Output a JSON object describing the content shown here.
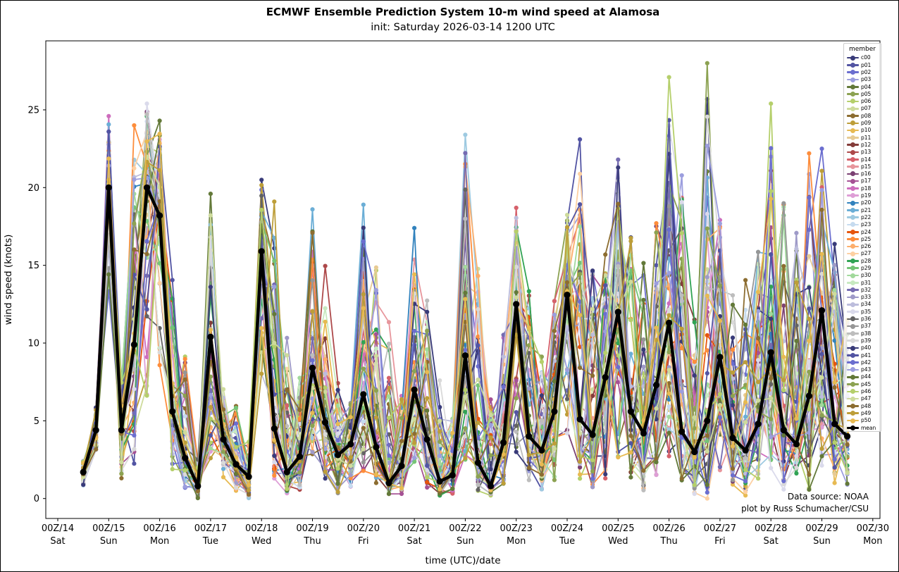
{
  "chart_data": {
    "type": "line",
    "title": "ECMWF Ensemble Prediction System 10-m wind speed at Alamosa",
    "subtitle": "init: Saturday 2026-03-14 1200 UTC",
    "xlabel": "time (UTC)/date",
    "ylabel": "wind speed (knots)",
    "yticks": [
      0,
      5,
      10,
      15,
      20,
      25
    ],
    "ylim": [
      -1.3,
      29.4
    ],
    "grid": false,
    "legend": {
      "title": "member",
      "position": "upper right"
    },
    "x_ticks": [
      {
        "label": "00Z/14",
        "day": "Sat"
      },
      {
        "label": "00Z/15",
        "day": "Sun"
      },
      {
        "label": "00Z/16",
        "day": "Mon"
      },
      {
        "label": "00Z/17",
        "day": "Tue"
      },
      {
        "label": "00Z/18",
        "day": "Wed"
      },
      {
        "label": "00Z/19",
        "day": "Thu"
      },
      {
        "label": "00Z/20",
        "day": "Fri"
      },
      {
        "label": "00Z/21",
        "day": "Sat"
      },
      {
        "label": "00Z/22",
        "day": "Sun"
      },
      {
        "label": "00Z/23",
        "day": "Mon"
      },
      {
        "label": "00Z/24",
        "day": "Tue"
      },
      {
        "label": "00Z/25",
        "day": "Wed"
      },
      {
        "label": "00Z/26",
        "day": "Thu"
      },
      {
        "label": "00Z/27",
        "day": "Fri"
      },
      {
        "label": "00Z/28",
        "day": "Sat"
      },
      {
        "label": "00Z/29",
        "day": "Sun"
      },
      {
        "label": "00Z/30",
        "day": "Mon"
      }
    ],
    "x_step_hours": 6,
    "times": [
      "12Z/14",
      "18Z/14",
      "00Z/15",
      "06Z/15",
      "12Z/15",
      "18Z/15",
      "00Z/16",
      "06Z/16",
      "12Z/16",
      "18Z/16",
      "00Z/17",
      "06Z/17",
      "12Z/17",
      "18Z/17",
      "00Z/18",
      "06Z/18",
      "12Z/18",
      "18Z/18",
      "00Z/19",
      "06Z/19",
      "12Z/19",
      "18Z/19",
      "00Z/20",
      "06Z/20",
      "12Z/20",
      "18Z/20",
      "00Z/21",
      "06Z/21",
      "12Z/21",
      "18Z/21",
      "00Z/22",
      "06Z/22",
      "12Z/22",
      "18Z/22",
      "00Z/23",
      "06Z/23",
      "12Z/23",
      "18Z/23",
      "00Z/24",
      "06Z/24",
      "12Z/24",
      "18Z/24",
      "00Z/25",
      "06Z/25",
      "12Z/25",
      "18Z/25",
      "00Z/26",
      "06Z/26",
      "12Z/26",
      "18Z/26",
      "00Z/27",
      "06Z/27",
      "12Z/27",
      "18Z/27",
      "00Z/28",
      "06Z/28",
      "12Z/28",
      "18Z/28",
      "00Z/29",
      "06Z/29",
      "12Z/29"
    ],
    "mean_series": {
      "name": "mean",
      "values": [
        1.7,
        4.4,
        20.0,
        4.4,
        9.9,
        20.0,
        18.2,
        5.6,
        2.6,
        0.8,
        10.4,
        3.8,
        2.2,
        1.4,
        15.9,
        4.5,
        1.7,
        2.7,
        8.4,
        4.9,
        2.8,
        3.5,
        6.7,
        3.3,
        1.0,
        2.1,
        7.0,
        3.8,
        1.1,
        1.5,
        9.2,
        2.3,
        0.8,
        3.6,
        12.5,
        4.0,
        3.1,
        5.6,
        13.1,
        5.1,
        4.1,
        7.8,
        12.0,
        5.6,
        4.2,
        7.3,
        11.3,
        4.3,
        3.0,
        5.0,
        9.1,
        3.9,
        3.1,
        4.8,
        9.4,
        4.4,
        3.5,
        6.6,
        12.1,
        4.8,
        4.0
      ]
    },
    "ensemble_envelope": {
      "max": [
        2.6,
        6.0,
        24.6,
        8.0,
        24.0,
        25.4,
        24.3,
        16.0,
        10.2,
        2.8,
        19.6,
        7.5,
        6.5,
        4.0,
        20.5,
        19.1,
        11.2,
        8.4,
        18.6,
        16.4,
        8.3,
        6.5,
        18.9,
        16.4,
        12.4,
        7.0,
        17.4,
        15.0,
        9.2,
        5.5,
        23.4,
        16.2,
        7.2,
        11.0,
        18.7,
        15.3,
        9.8,
        13.5,
        18.7,
        23.1,
        16.0,
        17.0,
        21.8,
        18.0,
        16.3,
        19.0,
        27.1,
        22.1,
        12.4,
        28.0,
        19.5,
        15.1,
        15.1,
        17.3,
        25.4,
        20.3,
        19.3,
        22.2,
        22.5,
        17.8,
        13.9
      ],
      "min": [
        0.8,
        2.8,
        13.0,
        1.3,
        2.0,
        6.0,
        8.0,
        1.5,
        0.5,
        0.0,
        2.0,
        1.0,
        0.2,
        0.0,
        7.5,
        1.0,
        0.3,
        0.2,
        2.5,
        1.0,
        0.3,
        0.5,
        1.5,
        1.0,
        0.3,
        0.3,
        2.0,
        0.5,
        0.2,
        0.3,
        2.0,
        0.5,
        0.2,
        0.5,
        2.5,
        1.0,
        0.5,
        1.0,
        3.0,
        1.0,
        0.5,
        1.0,
        2.0,
        1.0,
        0.5,
        1.0,
        2.0,
        1.0,
        0.3,
        0.0,
        1.5,
        0.5,
        0.2,
        0.5,
        1.0,
        0.5,
        0.3,
        0.5,
        2.0,
        1.0,
        0.5
      ]
    },
    "peak_attribution": [
      {
        "time": "00Z/15",
        "member": "p18"
      },
      {
        "time": "12Z/15",
        "member": "p25"
      },
      {
        "time": "18Z/15",
        "member": "p35"
      },
      {
        "time": "00Z/16",
        "member": "p04"
      },
      {
        "time": "00Z/17",
        "member": "p04"
      },
      {
        "time": "00Z/18",
        "member": "c00"
      },
      {
        "time": "06Z/18",
        "member": "p49"
      },
      {
        "time": "00Z/19",
        "member": "p21"
      },
      {
        "time": "00Z/20",
        "member": "p21"
      },
      {
        "time": "00Z/21",
        "member": "p20"
      },
      {
        "time": "00Z/22",
        "member": "p22"
      },
      {
        "time": "00Z/23",
        "member": "p14"
      },
      {
        "time": "06Z/24",
        "member": "p01"
      },
      {
        "time": "00Z/25",
        "member": "p32"
      },
      {
        "time": "00Z/26",
        "member": "p46"
      },
      {
        "time": "18Z/26",
        "member": "p05"
      },
      {
        "time": "00Z/28",
        "member": "p06"
      },
      {
        "time": "18Z/28",
        "member": "p25"
      },
      {
        "time": "00Z/29",
        "member": "p02"
      }
    ],
    "members": [
      {
        "name": "c00",
        "color": "#393b79"
      },
      {
        "name": "p01",
        "color": "#5254a3"
      },
      {
        "name": "p02",
        "color": "#6b6ecf"
      },
      {
        "name": "p03",
        "color": "#9c9ede"
      },
      {
        "name": "p04",
        "color": "#637939"
      },
      {
        "name": "p05",
        "color": "#8ca252"
      },
      {
        "name": "p06",
        "color": "#b5cf6b"
      },
      {
        "name": "p07",
        "color": "#cedb9c"
      },
      {
        "name": "p08",
        "color": "#8c6d31"
      },
      {
        "name": "p09",
        "color": "#bd9e39"
      },
      {
        "name": "p10",
        "color": "#e7ba52"
      },
      {
        "name": "p11",
        "color": "#e7cb94"
      },
      {
        "name": "p12",
        "color": "#843c39"
      },
      {
        "name": "p13",
        "color": "#ad494a"
      },
      {
        "name": "p14",
        "color": "#d6616b"
      },
      {
        "name": "p15",
        "color": "#e7969c"
      },
      {
        "name": "p16",
        "color": "#7b4173"
      },
      {
        "name": "p17",
        "color": "#a55194"
      },
      {
        "name": "p18",
        "color": "#ce6dbd"
      },
      {
        "name": "p19",
        "color": "#de9ed6"
      },
      {
        "name": "p20",
        "color": "#3182bd"
      },
      {
        "name": "p21",
        "color": "#6baed6"
      },
      {
        "name": "p22",
        "color": "#9ecae1"
      },
      {
        "name": "p23",
        "color": "#c6dbef"
      },
      {
        "name": "p24",
        "color": "#e6550d"
      },
      {
        "name": "p25",
        "color": "#fd8d3c"
      },
      {
        "name": "p26",
        "color": "#fdae6b"
      },
      {
        "name": "p27",
        "color": "#fdd0a2"
      },
      {
        "name": "p28",
        "color": "#31a354"
      },
      {
        "name": "p29",
        "color": "#74c476"
      },
      {
        "name": "p30",
        "color": "#a1d99b"
      },
      {
        "name": "p31",
        "color": "#c7e9c0"
      },
      {
        "name": "p32",
        "color": "#756bb1"
      },
      {
        "name": "p33",
        "color": "#9e9ac8"
      },
      {
        "name": "p34",
        "color": "#bcbddc"
      },
      {
        "name": "p35",
        "color": "#dadaeb"
      },
      {
        "name": "p36",
        "color": "#636363"
      },
      {
        "name": "p37",
        "color": "#969696"
      },
      {
        "name": "p38",
        "color": "#bdbdbd"
      },
      {
        "name": "p39",
        "color": "#d9d9d9"
      },
      {
        "name": "p40",
        "color": "#393b79"
      },
      {
        "name": "p41",
        "color": "#5254a3"
      },
      {
        "name": "p42",
        "color": "#6b6ecf"
      },
      {
        "name": "p43",
        "color": "#9c9ede"
      },
      {
        "name": "p44",
        "color": "#637939"
      },
      {
        "name": "p45",
        "color": "#8ca252"
      },
      {
        "name": "p46",
        "color": "#b5cf6b"
      },
      {
        "name": "p47",
        "color": "#cedb9c"
      },
      {
        "name": "p48",
        "color": "#8c6d31"
      },
      {
        "name": "p49",
        "color": "#bd9e39"
      },
      {
        "name": "p50",
        "color": "#e7ba52"
      },
      {
        "name": "mean",
        "color": "#000000"
      }
    ],
    "annotation": {
      "line1": "Data source: NOAA",
      "line2": "plot by Russ Schumacher/CSU"
    }
  }
}
